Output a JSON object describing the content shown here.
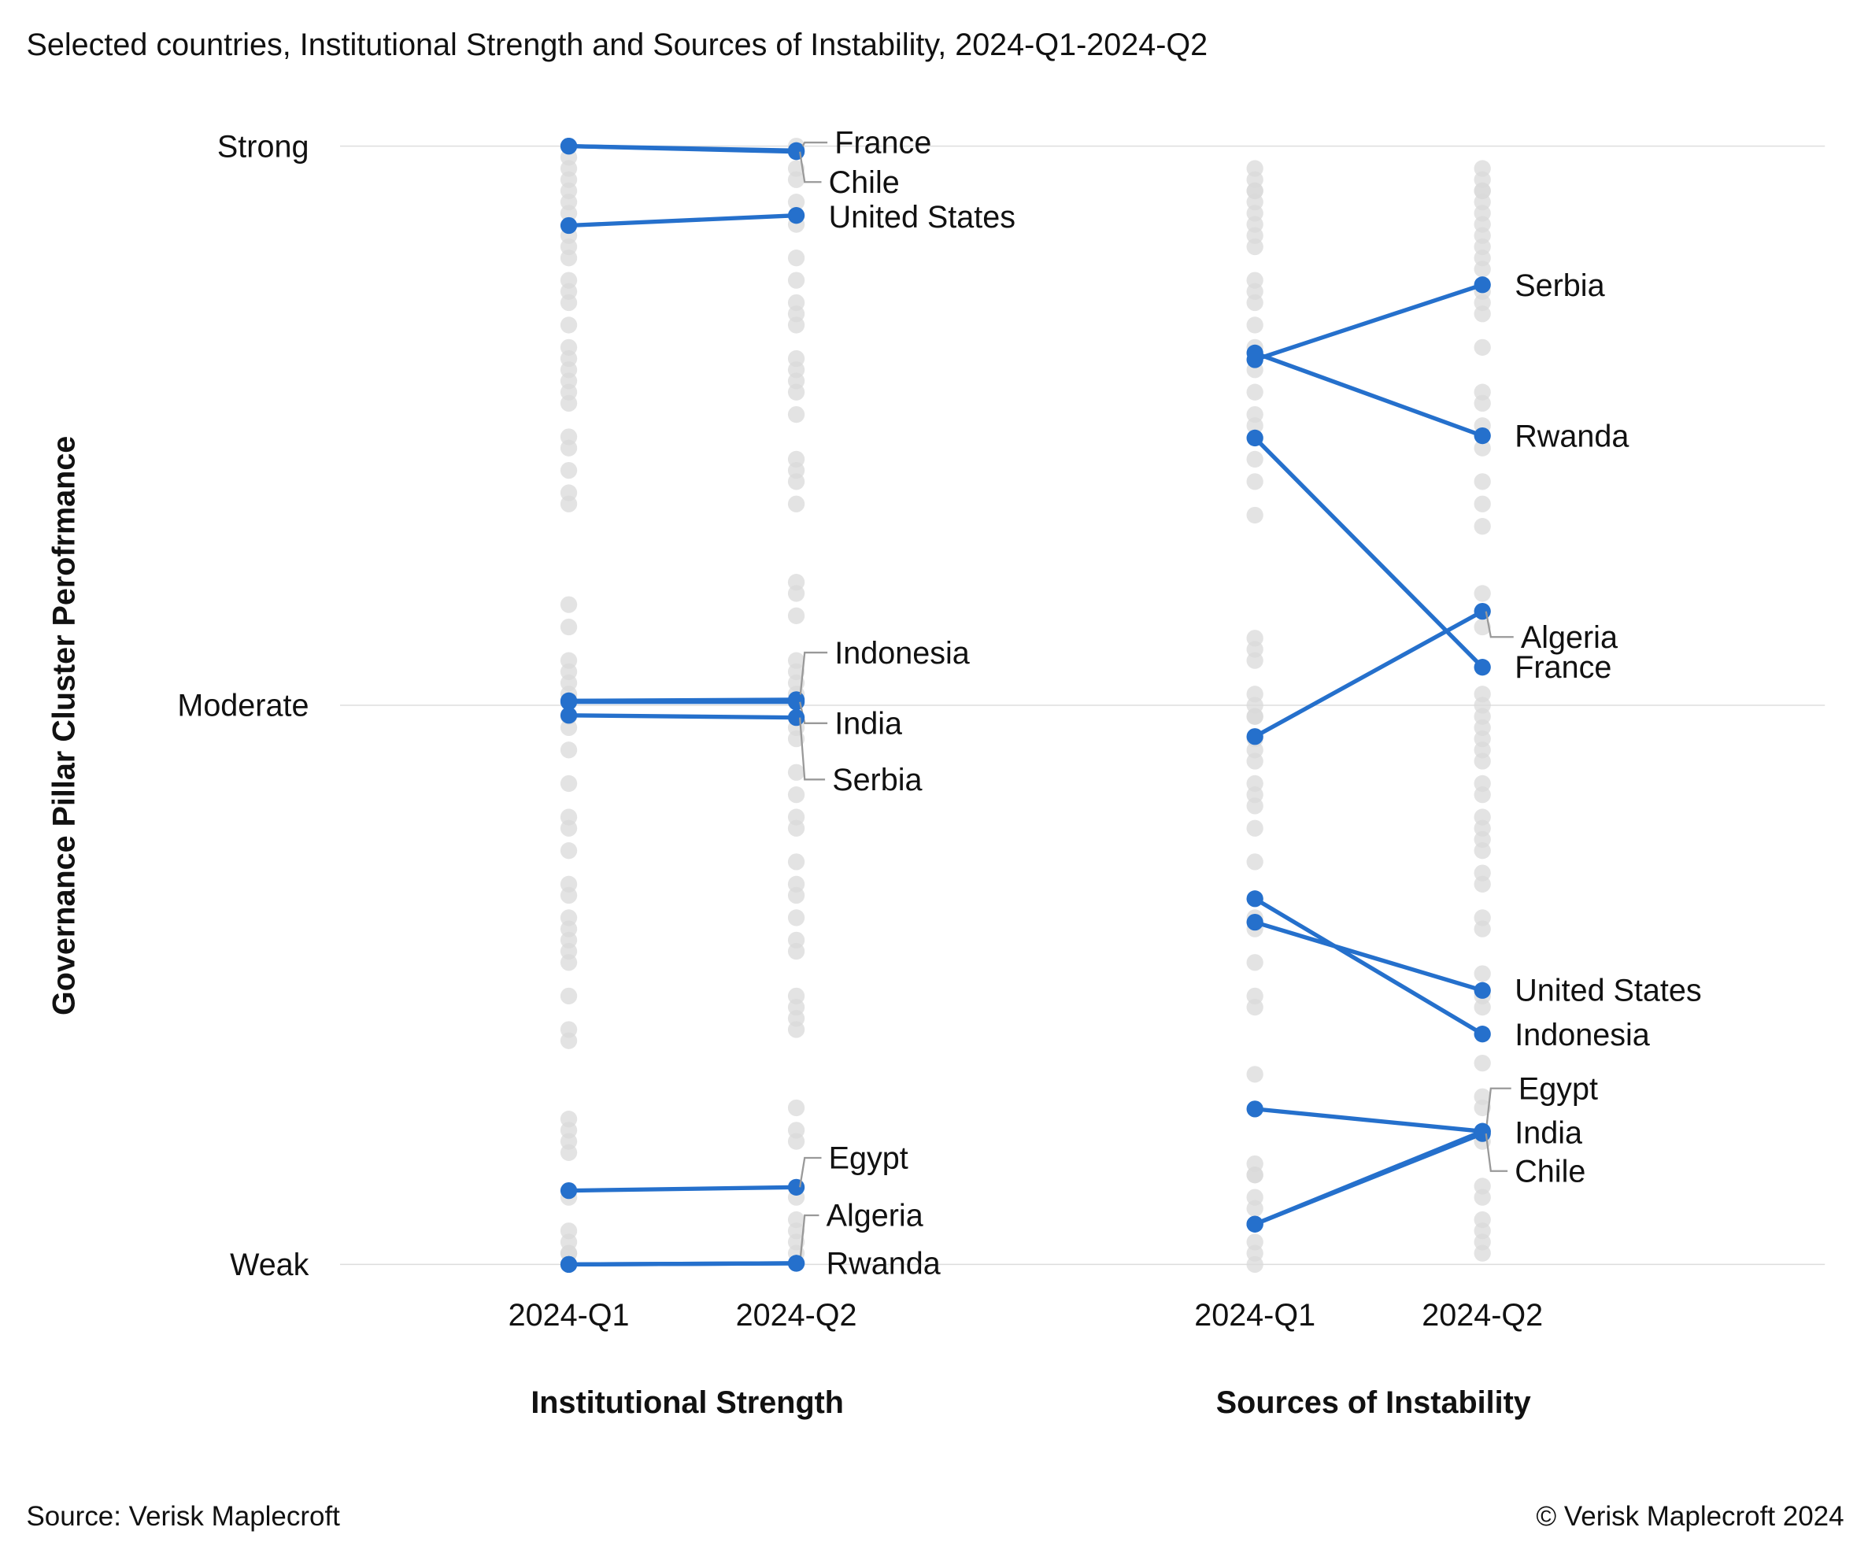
{
  "title": "Selected countries, Institutional Strength and Sources of Instability, 2024-Q1-2024-Q2",
  "footer": {
    "source": "Source: Verisk Maplecroft",
    "copyright": "© Verisk Maplecroft 2024"
  },
  "colors": {
    "highlight": "#2570cc",
    "other": "#d9d9d9",
    "grid": "#dddddd",
    "leader": "#999999"
  },
  "chart_data": {
    "type": "line",
    "ylabel": "Governance Pillar Cluster Perofrmance",
    "ylim": [
      0,
      100
    ],
    "yticks": [
      {
        "label": "Strong",
        "value": 100
      },
      {
        "label": "Moderate",
        "value": 50
      },
      {
        "label": "Weak",
        "value": 0
      }
    ],
    "grid": true,
    "panels": [
      {
        "xlabel": "Institutional Strength",
        "categories": [
          "2024-Q1",
          "2024-Q2"
        ],
        "series": [
          {
            "name": "France",
            "values": [
              100,
              99.6
            ]
          },
          {
            "name": "Chile",
            "values": [
              100,
              99.5
            ]
          },
          {
            "name": "United States",
            "values": [
              92.9,
              93.8
            ]
          },
          {
            "name": "Indonesia",
            "values": [
              50.4,
              50.5
            ]
          },
          {
            "name": "India",
            "values": [
              50.3,
              50.3
            ]
          },
          {
            "name": "Serbia",
            "values": [
              49.1,
              48.9
            ]
          },
          {
            "name": "Egypt",
            "values": [
              6.6,
              6.9
            ]
          },
          {
            "name": "Algeria",
            "values": [
              0,
              0.1
            ]
          },
          {
            "name": "Rwanda",
            "values": [
              0,
              0.1
            ]
          }
        ],
        "other_countries": [
          [
            99,
            98,
            97,
            96,
            95,
            94,
            92,
            91,
            90,
            88,
            87,
            86,
            84,
            82,
            81,
            80,
            79,
            78,
            77,
            74,
            73,
            71,
            69,
            68,
            59,
            57,
            54,
            53,
            52,
            51,
            49,
            48,
            46,
            43,
            40,
            39,
            37,
            34,
            33,
            31,
            30,
            29,
            28,
            27,
            24,
            21,
            20,
            13,
            12,
            11,
            10,
            6,
            3,
            2,
            1,
            1
          ],
          [
            100,
            98,
            97,
            95,
            93,
            90,
            88,
            86,
            85,
            84,
            81,
            80,
            79,
            78,
            76,
            72,
            71,
            70,
            68,
            61,
            60,
            58,
            54,
            53,
            52,
            51,
            48,
            47,
            44,
            42,
            40,
            39,
            36,
            34,
            33,
            31,
            29,
            28,
            24,
            23,
            22,
            21,
            14,
            12,
            11,
            6,
            4,
            3,
            2,
            1
          ]
        ]
      },
      {
        "xlabel": "Sources of Instability",
        "categories": [
          "2024-Q1",
          "2024-Q2"
        ],
        "series": [
          {
            "name": "Serbia",
            "values": [
              80.9,
              87.6
            ]
          },
          {
            "name": "Rwanda",
            "values": [
              81.5,
              74.1
            ]
          },
          {
            "name": "France",
            "values": [
              73.9,
              53.4
            ]
          },
          {
            "name": "Algeria",
            "values": [
              47.2,
              58.4
            ]
          },
          {
            "name": "United States",
            "values": [
              30.6,
              24.5
            ]
          },
          {
            "name": "Indonesia",
            "values": [
              32.7,
              20.6
            ]
          },
          {
            "name": "Egypt",
            "values": [
              13.9,
              11.9
            ]
          },
          {
            "name": "India",
            "values": [
              3.6,
              11.9
            ]
          },
          {
            "name": "Chile",
            "values": [
              3.6,
              11.7
            ]
          }
        ],
        "other_countries": [
          [
            98,
            97,
            96,
            96,
            95,
            94,
            93,
            92,
            91,
            88,
            87,
            86,
            84,
            82,
            80,
            78,
            76,
            75,
            72,
            70,
            67,
            56,
            55,
            54,
            51,
            50,
            49,
            49,
            47,
            46,
            45,
            43,
            42,
            41,
            39,
            36,
            31,
            30,
            27,
            24,
            23,
            17,
            9,
            8,
            8,
            6,
            5,
            2,
            1,
            0
          ],
          [
            98,
            97,
            96,
            96,
            95,
            94,
            93,
            92,
            91,
            90,
            89,
            87,
            86,
            85,
            82,
            78,
            77,
            75,
            73,
            70,
            68,
            66,
            60,
            57,
            51,
            50,
            49,
            48,
            47,
            46,
            45,
            43,
            42,
            40,
            39,
            38,
            37,
            35,
            34,
            31,
            30,
            26,
            24,
            23,
            18,
            15,
            14,
            11,
            7,
            6,
            4,
            3,
            2,
            1
          ]
        ]
      }
    ]
  }
}
